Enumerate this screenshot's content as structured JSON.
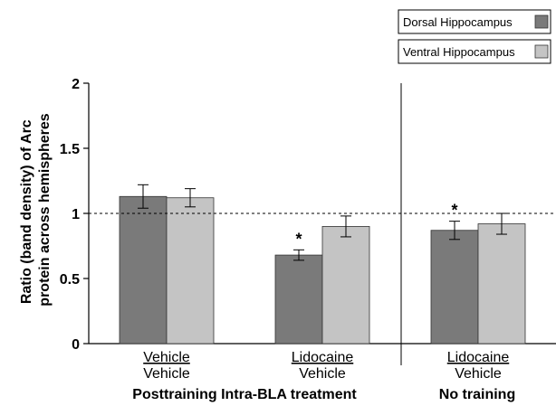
{
  "chart_data": {
    "type": "bar",
    "ylabel_line1": "Ratio (band density) of Arc",
    "ylabel_line2": "protein across hemispheres",
    "ylim": [
      0,
      2
    ],
    "yticks": [
      "0",
      "0.5",
      "1",
      "1.5",
      "2"
    ],
    "ytick_values": [
      0,
      0.5,
      1,
      1.5,
      2
    ],
    "reference_line": 1,
    "groups": [
      {
        "top_label": "Vehicle",
        "bottom_label": "Vehicle"
      },
      {
        "top_label": "Lidocaine",
        "bottom_label": "Vehicle"
      },
      {
        "top_label": "Lidocaine",
        "bottom_label": "Vehicle"
      }
    ],
    "series": [
      {
        "name": "Dorsal Hippocampus",
        "color": "#7a7a7a",
        "values": [
          1.13,
          0.68,
          0.87
        ],
        "errors": [
          0.09,
          0.04,
          0.07
        ]
      },
      {
        "name": "Ventral Hippocampus",
        "color": "#c4c4c4",
        "values": [
          1.12,
          0.9,
          0.92
        ],
        "errors": [
          0.07,
          0.08,
          0.08
        ]
      }
    ],
    "significance": [
      {
        "series": 0,
        "group": 1,
        "label": "*"
      },
      {
        "series": 0,
        "group": 2,
        "label": "*"
      }
    ],
    "sections": [
      {
        "label": "Posttraining Intra-BLA treatment"
      },
      {
        "label": "No training"
      }
    ],
    "legend_position": "top-right"
  }
}
